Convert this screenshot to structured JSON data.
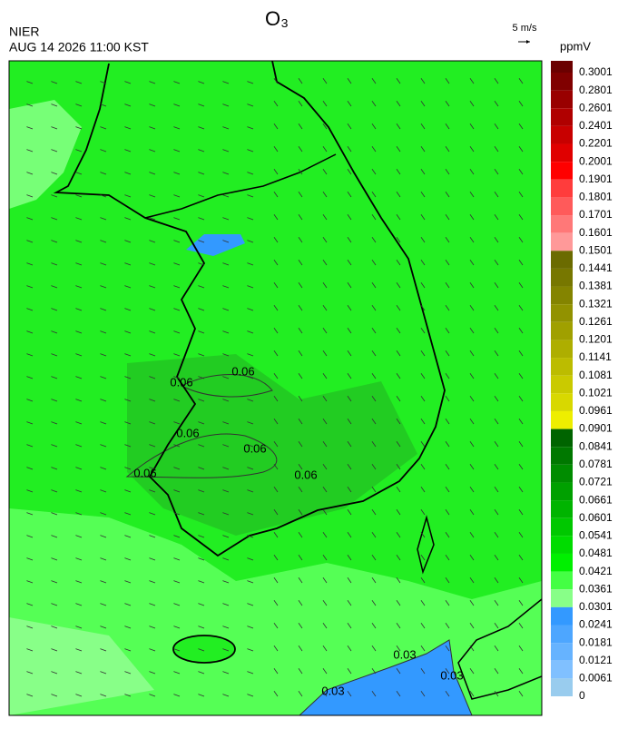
{
  "header": {
    "title": "O₃",
    "source": "NIER",
    "datetime": "AUG 14 2026 11:00 KST",
    "wind_scale": "5 m/s"
  },
  "colorbar": {
    "unit": "ppmV",
    "labels": [
      0.3001,
      0.2801,
      0.2601,
      0.2401,
      0.2201,
      0.2001,
      0.1901,
      0.1801,
      0.1701,
      0.1601,
      0.1501,
      0.1441,
      0.1381,
      0.1321,
      0.1261,
      0.1201,
      0.1141,
      0.1081,
      0.1021,
      0.0961,
      0.0901,
      0.0841,
      0.0781,
      0.0721,
      0.0661,
      0.0601,
      0.0541,
      0.0481,
      0.0421,
      0.0361,
      0.0301,
      0.0241,
      0.0181,
      0.0121,
      0.0061,
      0
    ],
    "colors": [
      "#6b0000",
      "#800000",
      "#990000",
      "#b00000",
      "#c80000",
      "#e00000",
      "#ff0000",
      "#ff3c3c",
      "#ff5a5a",
      "#ff7878",
      "#ff9999",
      "#6b6b00",
      "#777700",
      "#848400",
      "#929200",
      "#a0a000",
      "#aeae00",
      "#bcbc00",
      "#caca00",
      "#d8d800",
      "#eeee00",
      "#006400",
      "#007800",
      "#008c00",
      "#00a000",
      "#00b400",
      "#00c800",
      "#00dc00",
      "#00f000",
      "#44ff44",
      "#88ff88",
      "#3399ff",
      "#4da6ff",
      "#66b3ff",
      "#80c0ff",
      "#99ccee"
    ]
  },
  "contour_labels": [
    0.06,
    0.06,
    0.06,
    0.06,
    0.06,
    0.06,
    0.03,
    0.03,
    0.03
  ]
}
